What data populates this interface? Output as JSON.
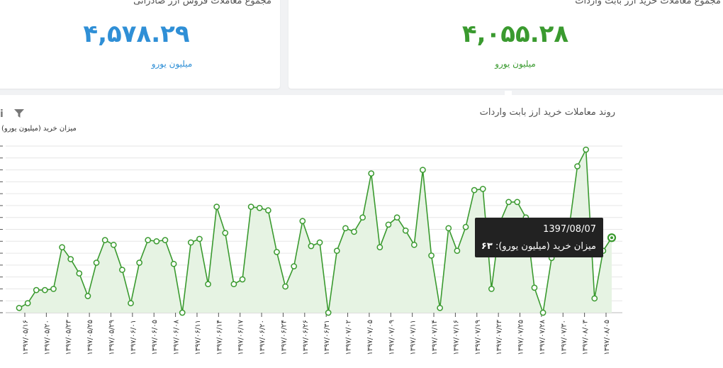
{
  "stats": {
    "purchase": {
      "title": "مجموع معاملات خرید ارز بابت واردات",
      "value": "۴,۰۵۵.۲۸",
      "unit": "میلیون یورو",
      "color": "#3a9a2f"
    },
    "sales": {
      "title": "مجموع معاملات فروش ارز صادراتی",
      "value": "۴,۵۷۸.۲۹",
      "unit": "میلیون یورو",
      "color": "#2f8fd6"
    }
  },
  "toolbar": {
    "info_icon": "info-icon",
    "filter_icon": "filter-icon"
  },
  "tooltip": {
    "date": "1397/08/07",
    "series_label": "میزان خرید (میلیون یورو):",
    "value": "۶۳"
  },
  "chart_data": {
    "type": "area",
    "title": "روند معاملات خرید ارز بابت واردات",
    "ylabel": "میزان خرید (میلیون یورو)",
    "xlabel": "",
    "ylim": [
      0,
      140
    ],
    "grid": true,
    "line_color": "#3a9a2f",
    "fill_color": "#e6f3e3",
    "tick_labels": [
      "۱۳۹۷/۰۵/۱۶",
      "۱۳۹۷/۰۵/۲۰",
      "۱۳۹۷/۰۵/۲۳",
      "۱۳۹۷/۰۵/۲۵",
      "۱۳۹۷/۰۵/۲۹",
      "۱۳۹۷/۰۶/۰۱",
      "۱۳۹۷/۰۶/۰۵",
      "۱۳۹۷/۰۶/۰۸",
      "۱۳۹۷/۰۶/۱۱",
      "۱۳۹۷/۰۶/۱۴",
      "۱۳۹۷/۰۶/۱۷",
      "۱۳۹۷/۰۶/۲۰",
      "۱۳۹۷/۰۶/۲۴",
      "۱۳۹۷/۰۶/۲۶",
      "۱۳۹۷/۰۶/۳۱",
      "۱۳۹۷/۰۷/۰۲",
      "۱۳۹۷/۰۷/۰۵",
      "۱۳۹۷/۰۷/۰۹",
      "۱۳۹۷/۰۷/۱۱",
      "۱۳۹۷/۰۷/۱۴",
      "۱۳۹۷/۰۷/۱۶",
      "۱۳۹۷/۰۷/۱۹",
      "۱۳۹۷/۰۷/۲۳",
      "۱۳۹۷/۰۷/۲۵",
      "۱۳۹۷/۰۷/۲۸",
      "۱۳۹۷/۰۷/۳۰",
      "۱۳۹۷/۰۸/۰۳",
      "۱۳۹۷/۰۸/۰۵"
    ],
    "values": [
      4,
      8,
      19,
      19,
      20,
      55,
      45,
      33,
      14,
      42,
      61,
      57,
      36,
      8,
      42,
      61,
      60,
      61,
      41,
      0,
      59,
      62,
      24,
      89,
      67,
      24,
      28,
      89,
      88,
      86,
      51,
      22,
      39,
      77,
      56,
      59,
      0,
      52,
      71,
      68,
      80,
      117,
      55,
      74,
      80,
      69,
      57,
      120,
      48,
      4,
      71,
      52,
      72,
      103,
      104,
      20,
      76,
      93,
      93,
      80,
      21,
      0,
      46,
      63,
      69,
      123,
      137,
      12,
      52,
      63
    ],
    "highlight_index": 69,
    "highlight_value": 63
  }
}
